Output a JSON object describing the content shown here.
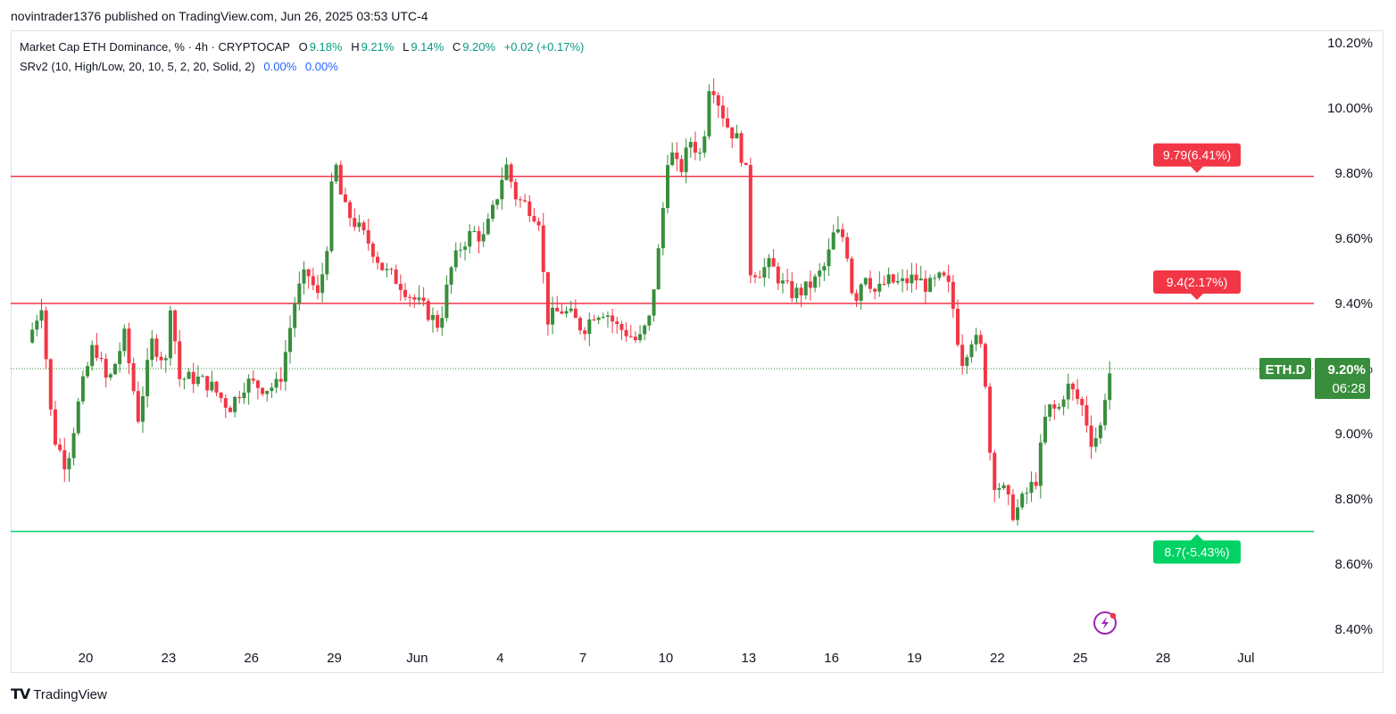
{
  "header": {
    "published": "novintrader1376 published on TradingView.com, Jun 26, 2025 03:53 UTC-4"
  },
  "legend": {
    "symbol": "Market Cap ETH Dominance, % · 4h · CRYPTOCAP",
    "o_label": "O",
    "o_value": "9.18%",
    "h_label": "H",
    "h_value": "9.21%",
    "l_label": "L",
    "l_value": "9.14%",
    "c_label": "C",
    "c_value": "9.20%",
    "change": "+0.02 (+0.17%)",
    "indicator": "SRv2 (10, High/Low, 20, 10, 5, 2, 20, Solid, 2)",
    "ind_val1": "0.00%",
    "ind_val2": "0.00%"
  },
  "footer": {
    "brand": "TradingView"
  },
  "colors": {
    "up": "#388e3c",
    "down": "#f23645",
    "resistance": "#f23645",
    "support": "#00d364",
    "current": "#388e3c"
  },
  "chart_data": {
    "type": "candlestick",
    "symbol": "ETH.D",
    "timeframe": "4h",
    "ylim": [
      8.35,
      10.22
    ],
    "y_ticks": [
      "10.20%",
      "10.00%",
      "9.80%",
      "9.60%",
      "9.40%",
      "9.20%",
      "9.00%",
      "8.80%",
      "8.60%",
      "8.40%"
    ],
    "y_tick_values": [
      10.2,
      10.0,
      9.8,
      9.6,
      9.4,
      9.2,
      9.0,
      8.8,
      8.6,
      8.4
    ],
    "x_ticks": [
      {
        "label": "20",
        "day": 20
      },
      {
        "label": "23",
        "day": 23
      },
      {
        "label": "26",
        "day": 26
      },
      {
        "label": "29",
        "day": 29
      },
      {
        "label": "Jun",
        "day": 32
      },
      {
        "label": "4",
        "day": 35
      },
      {
        "label": "7",
        "day": 38
      },
      {
        "label": "10",
        "day": 41
      },
      {
        "label": "13",
        "day": 44
      },
      {
        "label": "16",
        "day": 47
      },
      {
        "label": "19",
        "day": 50
      },
      {
        "label": "22",
        "day": 53
      },
      {
        "label": "25",
        "day": 56
      },
      {
        "label": "28",
        "day": 59
      },
      {
        "label": "Jul",
        "day": 62
      }
    ],
    "levels": [
      {
        "value": 9.79,
        "label": "9.79(6.41%)",
        "kind": "resistance"
      },
      {
        "value": 9.4,
        "label": "9.4(2.17%)",
        "kind": "resistance"
      },
      {
        "value": 8.7,
        "label": "8.7(-5.43%)",
        "kind": "support"
      }
    ],
    "current": {
      "value": 9.2,
      "label": "9.20%",
      "countdown": "06:28",
      "symbol_tag": "ETH.D"
    },
    "close_path": [
      {
        "day": 17.9,
        "c": 9.28
      },
      {
        "day": 18.4,
        "c": 9.4
      },
      {
        "day": 18.8,
        "c": 9.0
      },
      {
        "day": 19.3,
        "c": 8.9
      },
      {
        "day": 19.8,
        "c": 9.12
      },
      {
        "day": 20.3,
        "c": 9.28
      },
      {
        "day": 20.8,
        "c": 9.15
      },
      {
        "day": 21.4,
        "c": 9.3
      },
      {
        "day": 21.9,
        "c": 9.05
      },
      {
        "day": 22.4,
        "c": 9.28
      },
      {
        "day": 22.9,
        "c": 9.22
      },
      {
        "day": 23.0,
        "c": 9.45
      },
      {
        "day": 23.4,
        "c": 9.17
      },
      {
        "day": 24.0,
        "c": 9.17
      },
      {
        "day": 24.5,
        "c": 9.15
      },
      {
        "day": 25.2,
        "c": 9.08
      },
      {
        "day": 25.8,
        "c": 9.16
      },
      {
        "day": 26.5,
        "c": 9.14
      },
      {
        "day": 27.0,
        "c": 9.15
      },
      {
        "day": 27.3,
        "c": 9.28
      },
      {
        "day": 27.6,
        "c": 9.42
      },
      {
        "day": 28.0,
        "c": 9.5
      },
      {
        "day": 28.4,
        "c": 9.42
      },
      {
        "day": 28.7,
        "c": 9.55
      },
      {
        "day": 29.0,
        "c": 9.85
      },
      {
        "day": 29.3,
        "c": 9.7
      },
      {
        "day": 29.8,
        "c": 9.64
      },
      {
        "day": 30.3,
        "c": 9.58
      },
      {
        "day": 30.8,
        "c": 9.5
      },
      {
        "day": 31.3,
        "c": 9.47
      },
      {
        "day": 31.8,
        "c": 9.42
      },
      {
        "day": 32.3,
        "c": 9.38
      },
      {
        "day": 32.8,
        "c": 9.33
      },
      {
        "day": 33.2,
        "c": 9.5
      },
      {
        "day": 33.6,
        "c": 9.58
      },
      {
        "day": 34.0,
        "c": 9.62
      },
      {
        "day": 34.4,
        "c": 9.6
      },
      {
        "day": 34.8,
        "c": 9.7
      },
      {
        "day": 35.2,
        "c": 9.83
      },
      {
        "day": 35.6,
        "c": 9.72
      },
      {
        "day": 36.0,
        "c": 9.7
      },
      {
        "day": 36.4,
        "c": 9.66
      },
      {
        "day": 36.7,
        "c": 9.35
      },
      {
        "day": 37.2,
        "c": 9.38
      },
      {
        "day": 37.6,
        "c": 9.36
      },
      {
        "day": 38.0,
        "c": 9.32
      },
      {
        "day": 38.4,
        "c": 9.37
      },
      {
        "day": 38.8,
        "c": 9.38
      },
      {
        "day": 39.2,
        "c": 9.33
      },
      {
        "day": 39.6,
        "c": 9.31
      },
      {
        "day": 40.0,
        "c": 9.28
      },
      {
        "day": 40.4,
        "c": 9.35
      },
      {
        "day": 40.8,
        "c": 9.6
      },
      {
        "day": 41.1,
        "c": 9.88
      },
      {
        "day": 41.5,
        "c": 9.8
      },
      {
        "day": 41.9,
        "c": 9.9
      },
      {
        "day": 42.3,
        "c": 9.85
      },
      {
        "day": 42.6,
        "c": 10.1
      },
      {
        "day": 42.9,
        "c": 10.02
      },
      {
        "day": 43.2,
        "c": 9.95
      },
      {
        "day": 43.6,
        "c": 9.9
      },
      {
        "day": 43.9,
        "c": 9.8
      },
      {
        "day": 44.0,
        "c": 9.5
      },
      {
        "day": 44.4,
        "c": 9.5
      },
      {
        "day": 44.8,
        "c": 9.52
      },
      {
        "day": 45.2,
        "c": 9.46
      },
      {
        "day": 45.6,
        "c": 9.43
      },
      {
        "day": 46.0,
        "c": 9.44
      },
      {
        "day": 46.4,
        "c": 9.47
      },
      {
        "day": 46.8,
        "c": 9.52
      },
      {
        "day": 47.1,
        "c": 9.62
      },
      {
        "day": 47.5,
        "c": 9.6
      },
      {
        "day": 47.8,
        "c": 9.4
      },
      {
        "day": 48.2,
        "c": 9.5
      },
      {
        "day": 48.6,
        "c": 9.43
      },
      {
        "day": 49.0,
        "c": 9.47
      },
      {
        "day": 49.5,
        "c": 9.46
      },
      {
        "day": 50.0,
        "c": 9.48
      },
      {
        "day": 50.5,
        "c": 9.45
      },
      {
        "day": 51.0,
        "c": 9.48
      },
      {
        "day": 51.3,
        "c": 9.44
      },
      {
        "day": 51.7,
        "c": 9.22
      },
      {
        "day": 52.1,
        "c": 9.3
      },
      {
        "day": 52.5,
        "c": 9.25
      },
      {
        "day": 52.8,
        "c": 8.86
      },
      {
        "day": 53.2,
        "c": 8.83
      },
      {
        "day": 53.6,
        "c": 8.75
      },
      {
        "day": 54.0,
        "c": 8.81
      },
      {
        "day": 54.4,
        "c": 8.86
      },
      {
        "day": 54.8,
        "c": 9.08
      },
      {
        "day": 55.2,
        "c": 9.07
      },
      {
        "day": 55.5,
        "c": 9.15
      },
      {
        "day": 55.8,
        "c": 9.12
      },
      {
        "day": 56.1,
        "c": 9.08
      },
      {
        "day": 56.4,
        "c": 8.98
      },
      {
        "day": 56.7,
        "c": 9.0
      },
      {
        "day": 57.0,
        "c": 9.18
      },
      {
        "day": 57.2,
        "c": 9.2
      }
    ]
  }
}
